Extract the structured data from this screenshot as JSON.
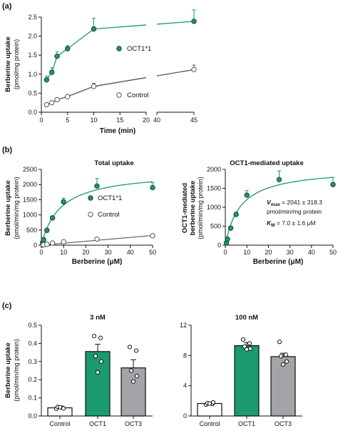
{
  "colors": {
    "oct1": "#1a9a6e",
    "control": "#555555",
    "oct3": "#a3a3a8",
    "control_bar": "#ffffff"
  },
  "chart_data": [
    {
      "panel": "(a)",
      "type": "line",
      "title": "",
      "xlabel": "Time (min)",
      "ylabel": "Berberine uptake",
      "ylabel2": "(pmol/mg protein)",
      "xlim": [
        0,
        45
      ],
      "xbreak": [
        20,
        40
      ],
      "ylim": [
        0,
        2.5
      ],
      "xticks": [
        0,
        5,
        10,
        15,
        20,
        40,
        45
      ],
      "yticks": [
        0.0,
        0.5,
        1.0,
        1.5,
        2.0,
        2.5
      ],
      "ytick_labels": [
        "0.0",
        "0.5",
        "1.0",
        "1.5",
        "2.0",
        "2.5"
      ],
      "series": [
        {
          "name": "OCT1*1",
          "x": [
            1,
            2,
            3,
            5,
            10,
            45
          ],
          "y": [
            0.85,
            1.05,
            1.47,
            1.67,
            2.19,
            2.39
          ],
          "err": [
            0.1,
            0.12,
            0.12,
            0.08,
            0.28,
            0.3
          ]
        },
        {
          "name": "Control",
          "x": [
            1,
            2,
            3,
            5,
            10,
            45
          ],
          "y": [
            0.2,
            0.25,
            0.33,
            0.41,
            0.68,
            1.12
          ],
          "err": [
            0.03,
            0.03,
            0.04,
            0.04,
            0.08,
            0.12
          ]
        }
      ]
    },
    {
      "panel": "(b)",
      "type": "scatter",
      "title": "Total uptake",
      "xlabel": "Berberine (μM)",
      "ylabel": "Berberine uptake",
      "ylabel2": "(pmol/min/mg protein)",
      "xlim": [
        0,
        50
      ],
      "ylim": [
        0,
        2500
      ],
      "xticks": [
        0,
        10,
        20,
        30,
        40,
        50
      ],
      "yticks": [
        0,
        500,
        1000,
        1500,
        2000,
        2500
      ],
      "series": [
        {
          "name": "OCT1*1",
          "x": [
            0.5,
            1,
            2.5,
            5,
            10,
            25,
            50
          ],
          "y": [
            80,
            180,
            490,
            900,
            1430,
            1950,
            1900
          ],
          "err": [
            20,
            30,
            40,
            60,
            120,
            250,
            160
          ]
        },
        {
          "name": "Control",
          "x": [
            0.5,
            1,
            2.5,
            5,
            10,
            25,
            50
          ],
          "y": [
            5,
            15,
            30,
            70,
            110,
            200,
            310
          ],
          "err": [
            3,
            4,
            6,
            10,
            15,
            20,
            40
          ]
        }
      ]
    },
    {
      "panel": "(b)",
      "type": "scatter",
      "title": "OCT1-mediated uptake",
      "xlabel": "Berberine (μM)",
      "ylabel": "OCT1-mediated",
      "ylabel2": "berberine uptake",
      "ylabel3": "(pmol/min/mg protein)",
      "xlim": [
        0,
        50
      ],
      "ylim": [
        0,
        2000
      ],
      "xticks": [
        0,
        10,
        20,
        30,
        40,
        50
      ],
      "yticks": [
        0,
        500,
        1000,
        1500,
        2000
      ],
      "annotation": {
        "vmax_symbol": "V",
        "vmax_sub": "max",
        "vmax_text": " = 2041 ± 318.3",
        "vmax_unit": "pmol/min/mg protein",
        "km_symbol": "K",
        "km_sub": "M",
        "km_text": " = 7.0 ± 1.6 μM"
      },
      "fit": {
        "Vmax": 2041,
        "Km": 7.0
      },
      "series": [
        {
          "name": "OCT1-mediated",
          "x": [
            0.5,
            1,
            2.5,
            5,
            10,
            25,
            50
          ],
          "y": [
            60,
            160,
            450,
            810,
            1320,
            1730,
            1600
          ],
          "err": [
            20,
            30,
            40,
            60,
            120,
            230,
            190
          ]
        }
      ]
    },
    {
      "panel": "(c)",
      "type": "bar",
      "title": "3 nM",
      "ylabel": "Berberine uptake",
      "ylabel2": "(pmol/min/mg protein)",
      "ylim": [
        0,
        0.5
      ],
      "yticks": [
        0.0,
        0.1,
        0.2,
        0.3,
        0.4,
        0.5
      ],
      "ytick_labels": [
        "0.0",
        "0.1",
        "0.2",
        "0.3",
        "0.4",
        "0.5"
      ],
      "categories": [
        "Control",
        "OCT1",
        "OCT3"
      ],
      "values": [
        0.045,
        0.355,
        0.265
      ],
      "err": [
        0.005,
        0.04,
        0.045
      ],
      "points": [
        [
          0.04,
          0.045,
          0.05,
          0.042,
          0.048
        ],
        [
          0.44,
          0.43,
          0.33,
          0.3,
          0.24
        ],
        [
          0.38,
          0.36,
          0.25,
          0.22,
          0.19
        ]
      ]
    },
    {
      "panel": "(c)",
      "type": "bar",
      "title": "100 nM",
      "ylim": [
        0,
        12
      ],
      "yticks": [
        0,
        4,
        8,
        12
      ],
      "categories": [
        "Control",
        "OCT1",
        "OCT3"
      ],
      "values": [
        1.65,
        9.3,
        7.85
      ],
      "err": [
        0.15,
        0.4,
        0.45
      ],
      "points": [
        [
          1.5,
          1.6,
          1.7,
          1.8,
          1.65
        ],
        [
          10.1,
          9.6,
          9.2,
          8.9,
          8.8
        ],
        [
          9.8,
          8.1,
          7.9,
          7.2,
          6.8
        ]
      ]
    }
  ]
}
